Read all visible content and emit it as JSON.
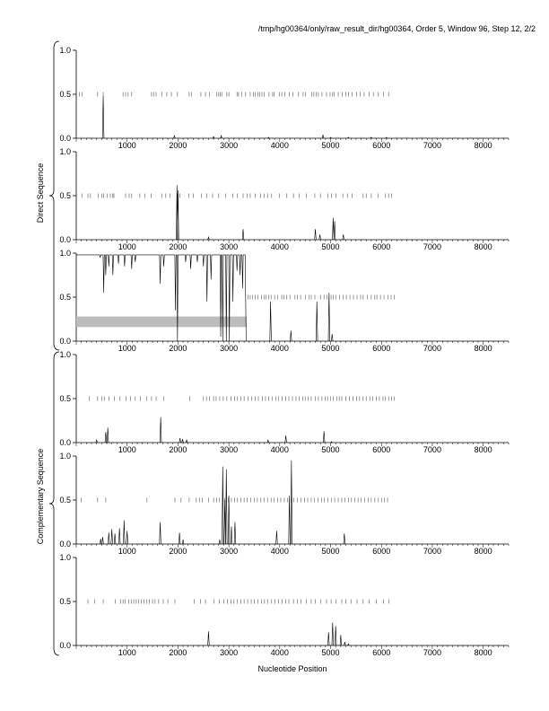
{
  "header": {
    "title": "/tmp/hg00364/only/raw_result_dir/hg00364, Order 5, Window 96, Step 12, 2/2"
  },
  "groups": {
    "direct": "Direct Sequence",
    "complementary": "Complementary Sequence"
  },
  "chart_data": {
    "type": "line",
    "xlabel": "Nucleotide Position",
    "ylabel": "",
    "xlim": [
      0,
      8500
    ],
    "ylim": [
      0.0,
      1.0
    ],
    "xticks": [
      "1000",
      "2000",
      "3000",
      "4000",
      "5000",
      "6000",
      "7000",
      "8000"
    ],
    "yticks": [
      "0.0",
      "0.5",
      "1.0"
    ],
    "grid": false,
    "panels": [
      {
        "group": "direct",
        "peaks": [
          [
            530,
            0.48
          ],
          [
            1930,
            0.03
          ],
          [
            2700,
            0.02
          ],
          [
            2850,
            0.03
          ],
          [
            3780,
            0.01
          ],
          [
            4850,
            0.04
          ],
          [
            5000,
            0.01
          ],
          [
            5350,
            0.01
          ],
          [
            5800,
            0.01
          ],
          [
            6100,
            0.01
          ]
        ],
        "ticks": [
          60,
          110,
          420,
          530,
          920,
          970,
          1020,
          1090,
          1480,
          1520,
          1570,
          1680,
          1780,
          1870,
          1990,
          2220,
          2270,
          2450,
          2540,
          2620,
          2760,
          2800,
          2830,
          2860,
          2960,
          3000,
          3160,
          3190,
          3250,
          3330,
          3420,
          3480,
          3520,
          3570,
          3610,
          3650,
          3690,
          3790,
          3860,
          3890,
          3990,
          4040,
          4100,
          4190,
          4260,
          4370,
          4460,
          4510,
          4630,
          4670,
          4720,
          4760,
          4830,
          4920,
          4990,
          5040,
          5070,
          5150,
          5230,
          5300,
          5350,
          5420,
          5510,
          5580,
          5660,
          5760,
          5840,
          5940,
          6040,
          6140
        ]
      },
      {
        "group": "direct",
        "peaks": [
          [
            1980,
            0.62
          ],
          [
            2000,
            0.56
          ],
          [
            2600,
            0.03
          ],
          [
            3280,
            0.12
          ],
          [
            4700,
            0.12
          ],
          [
            4790,
            0.06
          ],
          [
            5050,
            0.25
          ],
          [
            5080,
            0.21
          ],
          [
            5250,
            0.06
          ]
        ],
        "ticks": [
          110,
          230,
          280,
          430,
          500,
          540,
          610,
          670,
          720,
          740,
          970,
          1040,
          1090,
          1250,
          1350,
          1470,
          1680,
          1760,
          1840,
          1990,
          2040,
          2210,
          2300,
          2460,
          2570,
          2680,
          2800,
          2940,
          3080,
          3170,
          3280,
          3360,
          3420,
          3520,
          3620,
          3690,
          3760,
          3840,
          3990,
          4140,
          4270,
          4380,
          4520,
          4690,
          4800,
          4950,
          5020,
          5110,
          5240,
          5330,
          5420,
          5640,
          5700,
          5800,
          5930,
          6080,
          6140,
          6200
        ]
      },
      {
        "group": "direct",
        "dips": [
          [
            470,
            0.95
          ],
          [
            540,
            0.55
          ],
          [
            580,
            0.75
          ],
          [
            640,
            0.85
          ],
          [
            720,
            0.75
          ],
          [
            830,
            0.88
          ],
          [
            950,
            0.85
          ],
          [
            1090,
            0.82
          ],
          [
            1160,
            0.9
          ],
          [
            1650,
            0.65
          ],
          [
            1720,
            0.85
          ],
          [
            1950,
            0.35
          ],
          [
            1990,
            0.0
          ],
          [
            2150,
            0.9
          ],
          [
            2250,
            0.82
          ],
          [
            2380,
            0.9
          ],
          [
            2500,
            0.85
          ],
          [
            2570,
            0.45
          ],
          [
            2650,
            0.7
          ],
          [
            2840,
            0.05
          ],
          [
            2880,
            0.0
          ],
          [
            2950,
            0.0
          ],
          [
            3010,
            0.0
          ],
          [
            3080,
            0.45
          ],
          [
            3160,
            0.8
          ],
          [
            3220,
            0.75
          ],
          [
            3270,
            0.6
          ]
        ],
        "peaks": [
          [
            3820,
            0.45
          ],
          [
            4220,
            0.12
          ],
          [
            4730,
            0.45
          ],
          [
            4970,
            0.55
          ],
          [
            5030,
            0.08
          ]
        ],
        "band": {
          "x0": 0,
          "x1": 3350,
          "y0": 0.16,
          "y1": 0.28
        },
        "ticks": [
          3380,
          3420,
          3470,
          3520,
          3570,
          3640,
          3690,
          3730,
          3780,
          3830,
          3900,
          3960,
          4040,
          4080,
          4140,
          4200,
          4300,
          4350,
          4410,
          4510,
          4580,
          4620,
          4690,
          4800,
          4870,
          4930,
          5010,
          5050,
          5100,
          5180,
          5250,
          5310,
          5380,
          5450,
          5520,
          5590,
          5640,
          5720,
          5800,
          5870,
          5910,
          5980,
          6050,
          6130,
          6190,
          6250
        ]
      },
      {
        "group": "complementary",
        "peaks": [
          [
            400,
            0.03
          ],
          [
            580,
            0.12
          ],
          [
            620,
            0.17
          ],
          [
            1660,
            0.29
          ],
          [
            2040,
            0.05
          ],
          [
            2090,
            0.04
          ],
          [
            2170,
            0.03
          ],
          [
            3770,
            0.03
          ],
          [
            4120,
            0.08
          ],
          [
            4870,
            0.13
          ],
          [
            5020,
            0.01
          ]
        ],
        "ticks": [
          260,
          420,
          500,
          550,
          640,
          750,
          860,
          980,
          1070,
          1160,
          1260,
          1380,
          1480,
          1570,
          1720,
          2230,
          2500,
          2560,
          2620,
          2700,
          2750,
          2820,
          2890,
          2960,
          3040,
          3110,
          3170,
          3240,
          3300,
          3380,
          3450,
          3520,
          3580,
          3660,
          3720,
          3780,
          3850,
          3920,
          3980,
          4050,
          4120,
          4180,
          4250,
          4320,
          4380,
          4450,
          4500,
          4560,
          4620,
          4700,
          4760,
          4830,
          4890,
          4940,
          5000,
          5050,
          5120,
          5170,
          5220,
          5300,
          5370,
          5440,
          5510,
          5570,
          5640,
          5700,
          5770,
          5830,
          5900,
          5960,
          6030,
          6080,
          6140,
          6200,
          6250
        ]
      },
      {
        "group": "complementary",
        "peaks": [
          [
            480,
            0.06
          ],
          [
            520,
            0.08
          ],
          [
            640,
            0.13
          ],
          [
            700,
            0.17
          ],
          [
            760,
            0.12
          ],
          [
            850,
            0.18
          ],
          [
            940,
            0.27
          ],
          [
            1000,
            0.15
          ],
          [
            1650,
            0.25
          ],
          [
            2030,
            0.13
          ],
          [
            2100,
            0.05
          ],
          [
            2820,
            0.05
          ],
          [
            2880,
            0.88
          ],
          [
            2920,
            0.5
          ],
          [
            2950,
            0.85
          ],
          [
            3000,
            0.55
          ],
          [
            3050,
            0.2
          ],
          [
            3120,
            0.25
          ],
          [
            3940,
            0.15
          ],
          [
            4190,
            0.55
          ],
          [
            4230,
            0.95
          ],
          [
            5270,
            0.12
          ]
        ],
        "ticks": [
          100,
          420,
          580,
          1390,
          1940,
          2060,
          2220,
          2360,
          2420,
          2480,
          2600,
          2700,
          2760,
          2810,
          2920,
          2990,
          3050,
          3110,
          3170,
          3240,
          3300,
          3360,
          3430,
          3500,
          3560,
          3630,
          3690,
          3760,
          3830,
          3890,
          3960,
          4020,
          4090,
          4150,
          4220,
          4280,
          4350,
          4420,
          4490,
          4550,
          4620,
          4680,
          4750,
          4820,
          4880,
          4950,
          5020,
          5080,
          5150,
          5220,
          5280,
          5350,
          5410,
          5480,
          5540,
          5600,
          5670,
          5740,
          5800,
          5870,
          5940,
          6000,
          6060,
          6120
        ]
      },
      {
        "group": "complementary",
        "peaks": [
          [
            2600,
            0.16
          ],
          [
            4960,
            0.15
          ],
          [
            5040,
            0.26
          ],
          [
            5100,
            0.22
          ],
          [
            5200,
            0.12
          ],
          [
            5280,
            0.04
          ],
          [
            5350,
            0.02
          ]
        ],
        "ticks": [
          230,
          360,
          530,
          770,
          870,
          920,
          960,
          1030,
          1080,
          1130,
          1180,
          1230,
          1280,
          1330,
          1390,
          1440,
          1500,
          1550,
          1620,
          1710,
          1800,
          1940,
          2320,
          2440,
          2540,
          2710,
          2810,
          2900,
          2970,
          3040,
          3100,
          3170,
          3240,
          3300,
          3370,
          3440,
          3500,
          3570,
          3640,
          3700,
          3760,
          3840,
          3910,
          3980,
          4050,
          4120,
          4180,
          4270,
          4350,
          4420,
          4520,
          4620,
          4700,
          4810,
          4920,
          5010,
          5110,
          5220,
          5300,
          5400,
          5520,
          5640,
          5760,
          5900,
          6040,
          6150
        ]
      }
    ]
  }
}
